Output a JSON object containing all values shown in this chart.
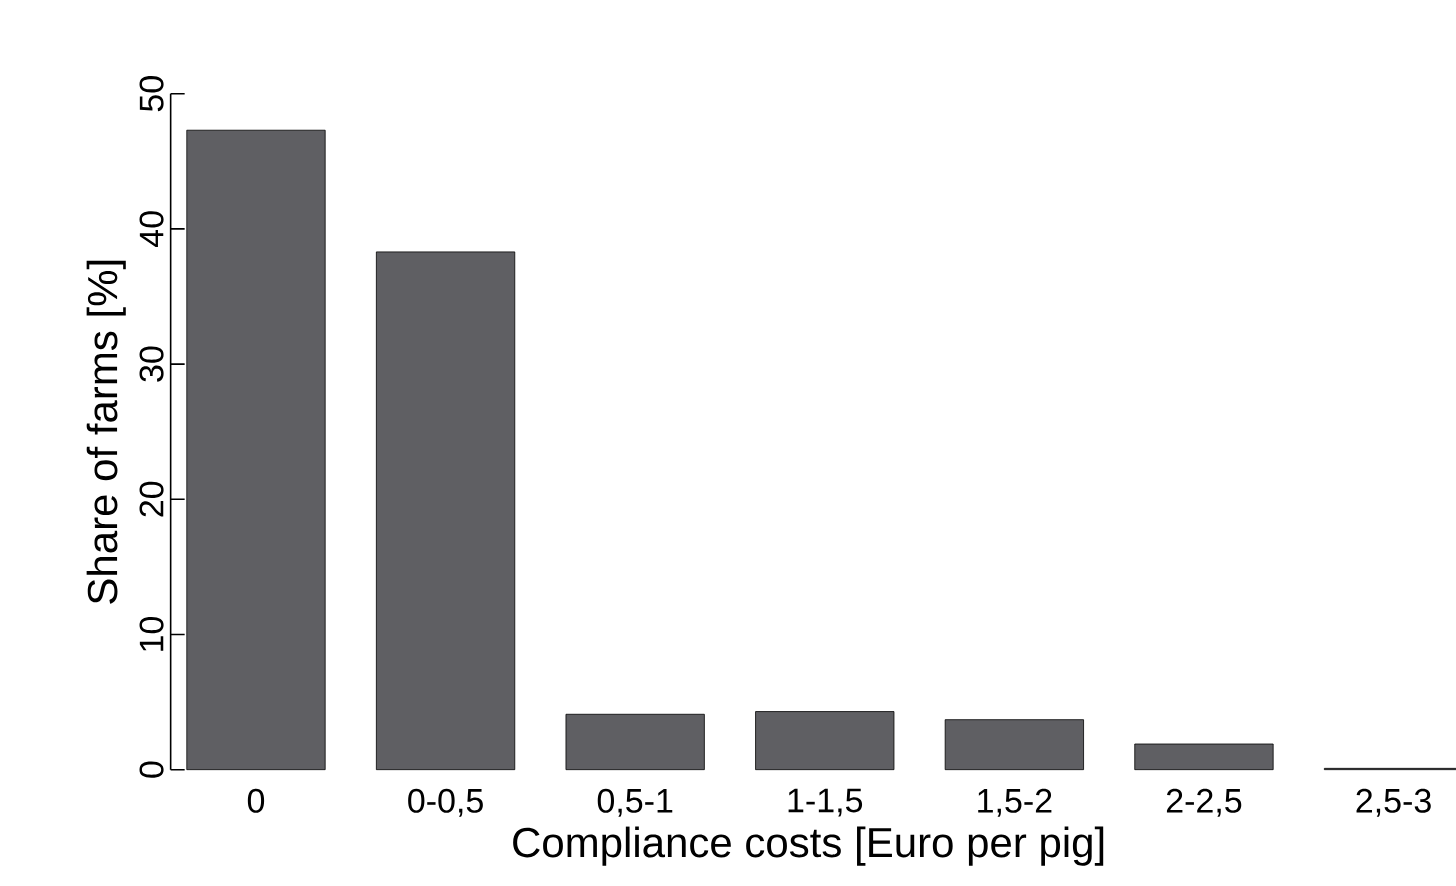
{
  "chart_data": {
    "type": "bar",
    "xlabel": "Compliance costs [Euro per pig]",
    "ylabel": "Share of farms [%]",
    "categories": [
      "0",
      "0-0,5",
      "0,5-1",
      "1-1,5",
      "1,5-2",
      "2-2,5",
      "2,5-3"
    ],
    "values": [
      47.3,
      38.3,
      4.1,
      4.3,
      3.7,
      1.9,
      0.1
    ],
    "color": "#5f5f63",
    "ylim": [
      0,
      50
    ],
    "yticks": [
      0,
      10,
      20,
      30,
      40,
      50
    ],
    "grid": false
  }
}
